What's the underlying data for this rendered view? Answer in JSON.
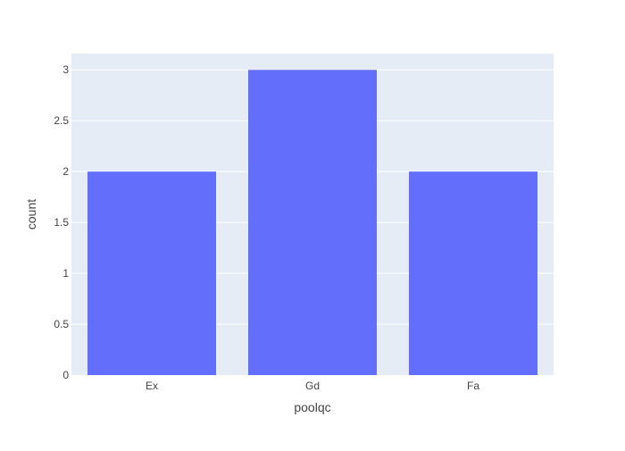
{
  "chart_data": {
    "type": "bar",
    "categories": [
      "Ex",
      "Gd",
      "Fa"
    ],
    "values": [
      2,
      3,
      2
    ],
    "xlabel": "poolqc",
    "ylabel": "count",
    "ylim": [
      0,
      3.16
    ],
    "yticks": [
      0,
      0.5,
      1,
      1.5,
      2,
      2.5,
      3
    ],
    "ytick_labels": [
      "0",
      "0.5",
      "1",
      "1.5",
      "2",
      "2.5",
      "3"
    ],
    "grid": true,
    "legend": "none"
  },
  "colors": {
    "bar": "#636efa",
    "plot_background": "#e5ecf6",
    "gridline": "#ffffff",
    "text": "#444444"
  }
}
